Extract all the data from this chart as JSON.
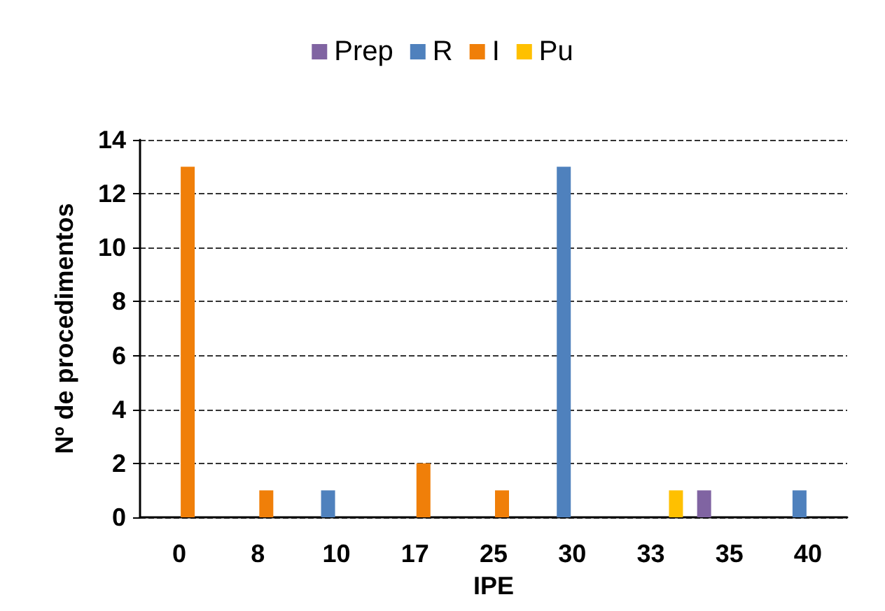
{
  "chart_data": {
    "type": "bar",
    "xlabel": "IPE",
    "ylabel": "Nº de procedimentos",
    "categories": [
      "0",
      "8",
      "10",
      "17",
      "25",
      "30",
      "33",
      "35",
      "40"
    ],
    "series": [
      {
        "name": "Prep",
        "color": "#8064a2",
        "values": [
          0,
          0,
          0,
          0,
          0,
          0,
          0,
          1,
          0
        ]
      },
      {
        "name": "R",
        "color": "#4f81bd",
        "values": [
          0,
          0,
          1,
          0,
          0,
          13,
          0,
          0,
          1
        ]
      },
      {
        "name": "I",
        "color": "#f07f09",
        "values": [
          13,
          1,
          0,
          2,
          1,
          0,
          0,
          0,
          0
        ]
      },
      {
        "name": "Pu",
        "color": "#ffc000",
        "values": [
          0,
          0,
          0,
          0,
          0,
          0,
          1,
          0,
          0
        ]
      }
    ],
    "ylim": [
      0,
      14
    ],
    "yticks": [
      0,
      2,
      4,
      6,
      8,
      10,
      12,
      14
    ],
    "grid": "y",
    "legend": "top"
  }
}
